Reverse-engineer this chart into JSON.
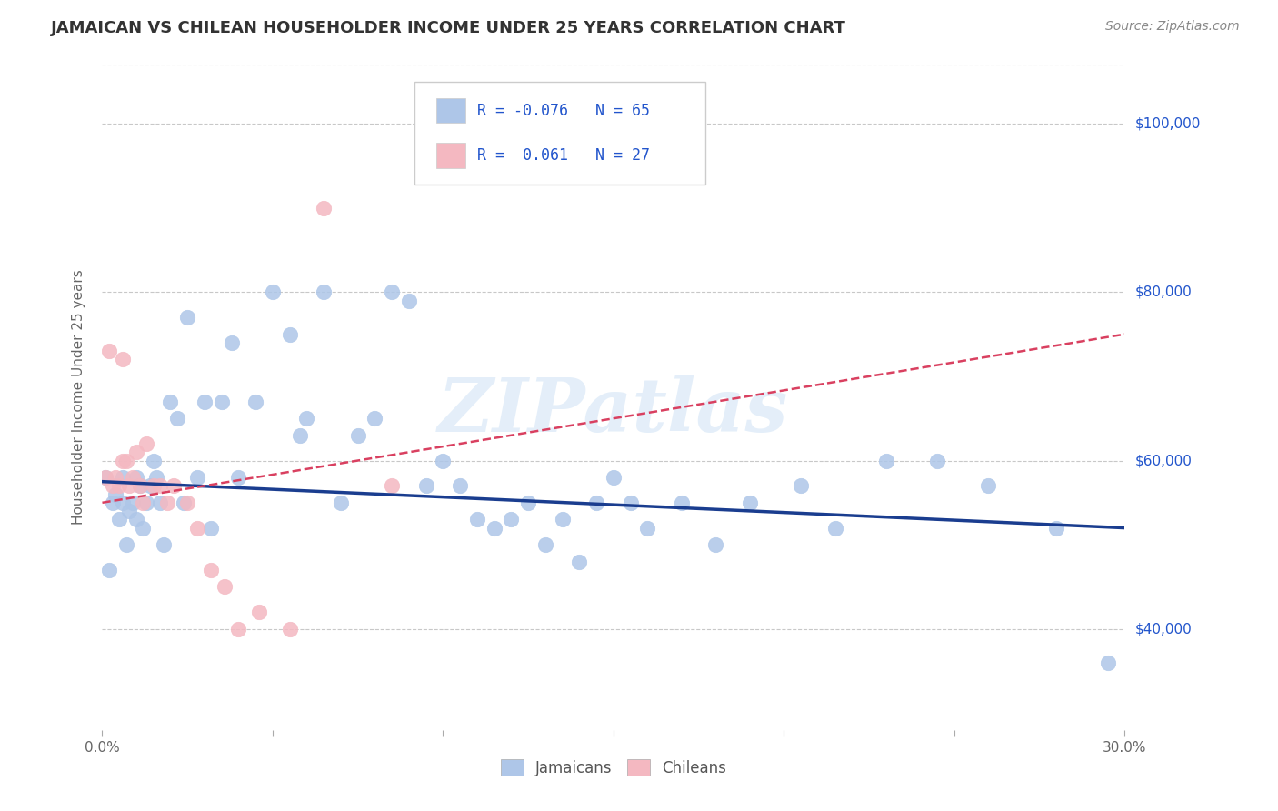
{
  "title": "JAMAICAN VS CHILEAN HOUSEHOLDER INCOME UNDER 25 YEARS CORRELATION CHART",
  "source": "Source: ZipAtlas.com",
  "ylabel": "Householder Income Under 25 years",
  "xlim": [
    0.0,
    0.3
  ],
  "ylim": [
    28000,
    107000
  ],
  "xticks": [
    0.0,
    0.05,
    0.1,
    0.15,
    0.2,
    0.25,
    0.3
  ],
  "ytick_positions": [
    40000,
    60000,
    80000,
    100000
  ],
  "ytick_labels": [
    "$40,000",
    "$60,000",
    "$80,000",
    "$100,000"
  ],
  "watermark": "ZIPatlas",
  "legend_r1": "-0.076",
  "legend_n1": "N = 65",
  "legend_r2": "0.061",
  "legend_n2": "N = 27",
  "jamaican_color": "#aec6e8",
  "chilean_color": "#f4b8c1",
  "jamaican_line_color": "#1a3d8f",
  "chilean_line_color": "#d94060",
  "background_color": "#ffffff",
  "grid_color": "#c8c8c8",
  "jamaicans_x": [
    0.001,
    0.002,
    0.003,
    0.004,
    0.005,
    0.006,
    0.006,
    0.007,
    0.008,
    0.009,
    0.01,
    0.01,
    0.011,
    0.012,
    0.013,
    0.014,
    0.015,
    0.016,
    0.017,
    0.018,
    0.02,
    0.022,
    0.024,
    0.025,
    0.028,
    0.03,
    0.032,
    0.035,
    0.038,
    0.04,
    0.045,
    0.05,
    0.055,
    0.058,
    0.06,
    0.065,
    0.07,
    0.075,
    0.08,
    0.085,
    0.09,
    0.095,
    0.1,
    0.105,
    0.11,
    0.115,
    0.12,
    0.125,
    0.13,
    0.135,
    0.14,
    0.145,
    0.15,
    0.155,
    0.16,
    0.17,
    0.18,
    0.19,
    0.205,
    0.215,
    0.23,
    0.245,
    0.26,
    0.28,
    0.295
  ],
  "jamaicans_y": [
    58000,
    47000,
    55000,
    56000,
    53000,
    58000,
    55000,
    50000,
    54000,
    55000,
    58000,
    53000,
    57000,
    52000,
    55000,
    57000,
    60000,
    58000,
    55000,
    50000,
    67000,
    65000,
    55000,
    77000,
    58000,
    67000,
    52000,
    67000,
    74000,
    58000,
    67000,
    80000,
    75000,
    63000,
    65000,
    80000,
    55000,
    63000,
    65000,
    80000,
    79000,
    57000,
    60000,
    57000,
    53000,
    52000,
    53000,
    55000,
    50000,
    53000,
    48000,
    55000,
    58000,
    55000,
    52000,
    55000,
    50000,
    55000,
    57000,
    52000,
    60000,
    60000,
    57000,
    52000,
    36000
  ],
  "chileans_x": [
    0.001,
    0.002,
    0.003,
    0.004,
    0.005,
    0.006,
    0.006,
    0.007,
    0.008,
    0.009,
    0.01,
    0.011,
    0.012,
    0.013,
    0.015,
    0.017,
    0.019,
    0.021,
    0.025,
    0.028,
    0.032,
    0.036,
    0.04,
    0.046,
    0.055,
    0.065,
    0.085
  ],
  "chileans_y": [
    58000,
    73000,
    57000,
    58000,
    57000,
    72000,
    60000,
    60000,
    57000,
    58000,
    61000,
    57000,
    55000,
    62000,
    57000,
    57000,
    55000,
    57000,
    55000,
    52000,
    47000,
    45000,
    40000,
    42000,
    40000,
    90000,
    57000
  ],
  "jline_x0": 0.0,
  "jline_y0": 57500,
  "jline_x1": 0.3,
  "jline_y1": 52000,
  "cline_x0": 0.0,
  "cline_y0": 55000,
  "cline_x1": 0.3,
  "cline_y1": 75000
}
